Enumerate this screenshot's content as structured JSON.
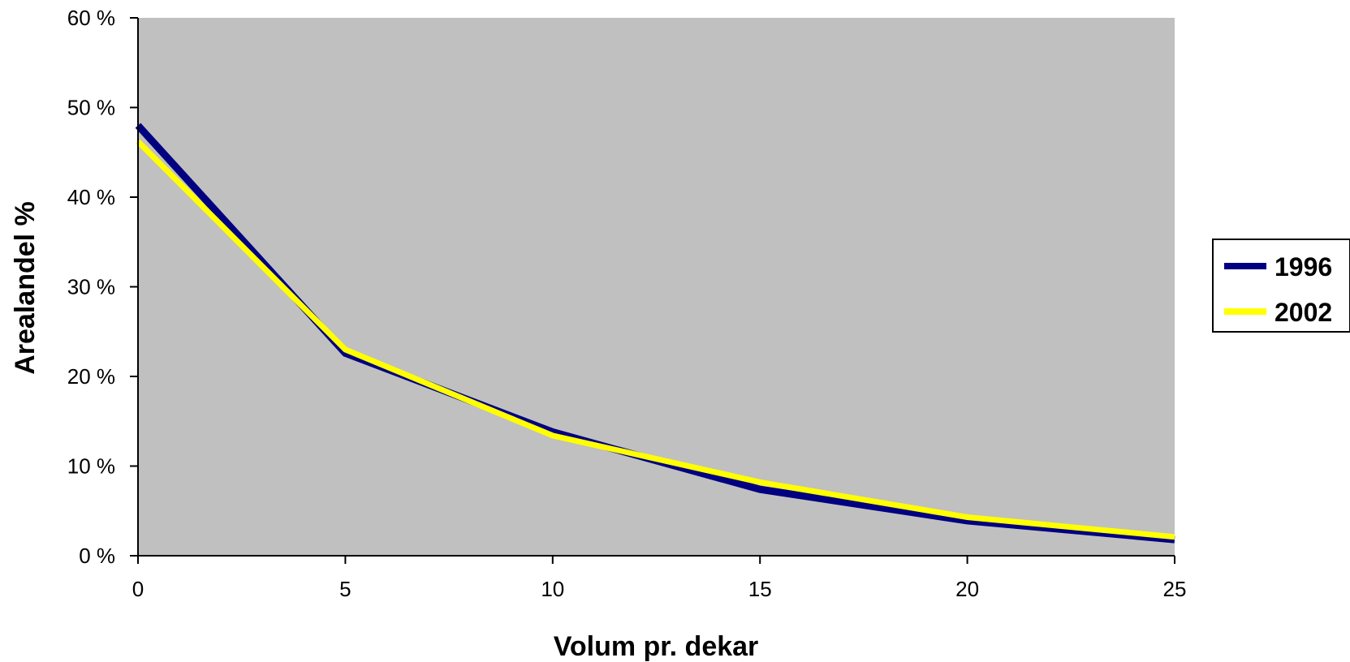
{
  "chart_data": {
    "type": "line",
    "title": "",
    "xlabel": "Volum pr. dekar",
    "ylabel": "Arealandel %",
    "x": [
      0,
      5,
      10,
      15,
      20,
      25
    ],
    "xlim": [
      0,
      25
    ],
    "ylim": [
      0,
      60
    ],
    "x_ticks": [
      "0",
      "5",
      "10",
      "15",
      "20",
      "25"
    ],
    "y_ticks": [
      "0 %",
      "10 %",
      "20 %",
      "30 %",
      "40 %",
      "50 %",
      "60 %"
    ],
    "y_tick_values": [
      0,
      10,
      20,
      30,
      40,
      50,
      60
    ],
    "grid": false,
    "plot_background": "#c0c0c0",
    "legend_position": "right",
    "series": [
      {
        "name": "1996",
        "color": "#000080",
        "values": [
          48.0,
          22.6,
          13.8,
          7.4,
          3.9,
          1.8
        ]
      },
      {
        "name": "2002",
        "color": "#ffff00",
        "values": [
          46.2,
          23.0,
          13.4,
          8.2,
          4.3,
          2.1
        ]
      }
    ]
  }
}
